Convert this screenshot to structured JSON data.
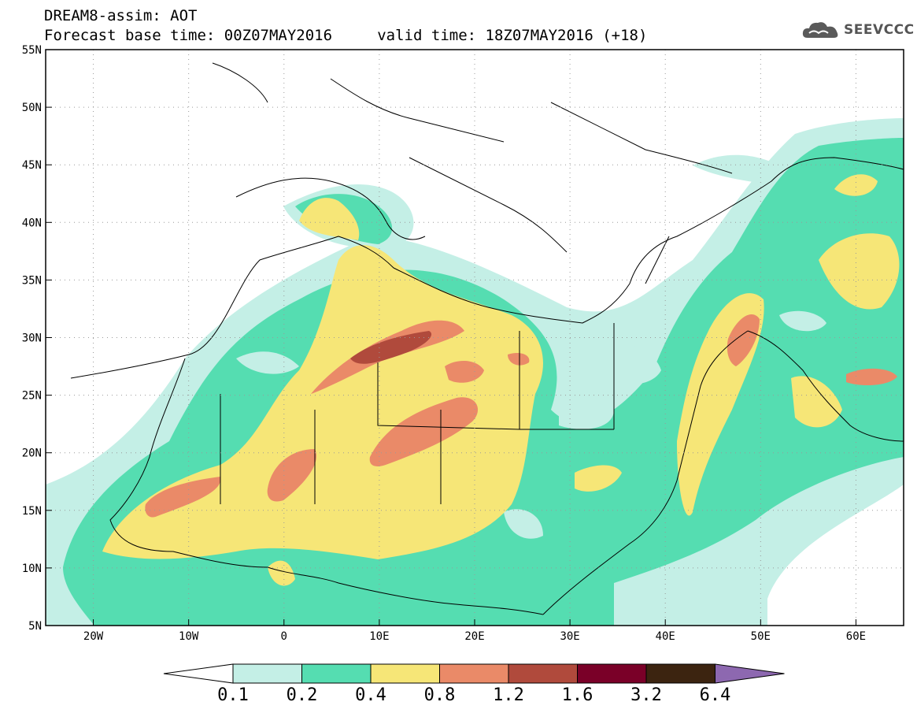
{
  "header": {
    "title_line1": "DREAM8-assim: AOT",
    "title_line2": "Forecast base time: 00Z07MAY2016     valid time: 18Z07MAY2016 (+18)"
  },
  "logo": {
    "text": "SEEVCCC",
    "icon": "cloud-icon"
  },
  "map": {
    "lon_range": [
      -25,
      65
    ],
    "lat_range": [
      5,
      55
    ],
    "lon_ticks": [
      {
        "value": -20,
        "label": "20W"
      },
      {
        "value": -10,
        "label": "10W"
      },
      {
        "value": 0,
        "label": "0"
      },
      {
        "value": 10,
        "label": "10E"
      },
      {
        "value": 20,
        "label": "20E"
      },
      {
        "value": 30,
        "label": "30E"
      },
      {
        "value": 40,
        "label": "40E"
      },
      {
        "value": 50,
        "label": "50E"
      },
      {
        "value": 60,
        "label": "60E"
      }
    ],
    "lat_ticks": [
      {
        "value": 55,
        "label": "55N"
      },
      {
        "value": 50,
        "label": "50N"
      },
      {
        "value": 45,
        "label": "45N"
      },
      {
        "value": 40,
        "label": "40N"
      },
      {
        "value": 35,
        "label": "35N"
      },
      {
        "value": 30,
        "label": "30N"
      },
      {
        "value": 25,
        "label": "25N"
      },
      {
        "value": 20,
        "label": "20N"
      },
      {
        "value": 15,
        "label": "15N"
      },
      {
        "value": 10,
        "label": "10N"
      },
      {
        "value": 5,
        "label": "5N"
      }
    ],
    "gridlines": "dotted"
  },
  "colorbar": {
    "levels": [
      "0.1",
      "0.2",
      "0.4",
      "0.8",
      "1.2",
      "1.6",
      "3.2",
      "6.4"
    ],
    "colors": [
      "#ffffff",
      "#c4efe6",
      "#55ddb1",
      "#f6e677",
      "#ea8a68",
      "#b04a3c",
      "#7a0028",
      "#3c2410",
      "#8d68b0"
    ]
  }
}
